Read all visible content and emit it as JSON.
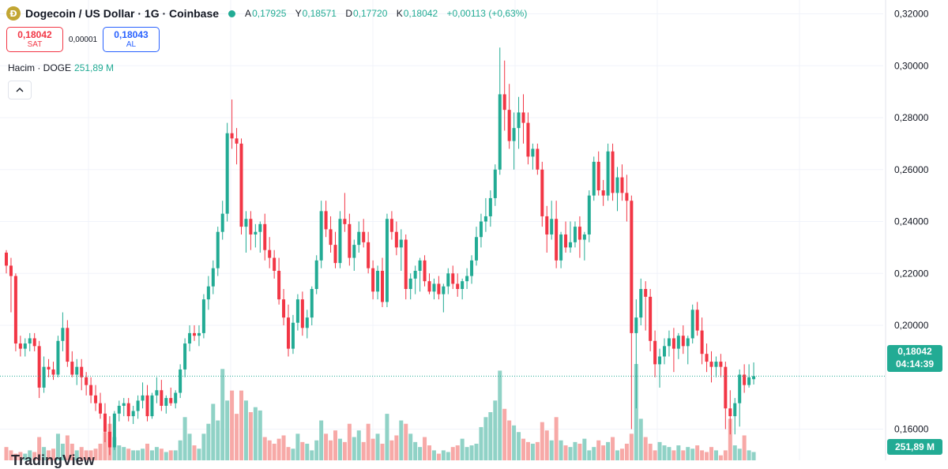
{
  "header": {
    "coin_icon_glyph": "Ð",
    "symbol_title": "Dogecoin / US Dollar · 1G · Coinbase",
    "ohlc": [
      {
        "key": "A",
        "value": "0,17925"
      },
      {
        "key": "Y",
        "value": "0,18571"
      },
      {
        "key": "D",
        "value": "0,17720"
      },
      {
        "key": "K",
        "value": "0,18042"
      }
    ],
    "change": "+0,00113 (+0,63%)"
  },
  "trade": {
    "sell_price": "0,18042",
    "sell_label": "SAT",
    "spread": "0,00001",
    "buy_price": "0,18043",
    "buy_label": "AL"
  },
  "volume_indicator": {
    "label": "Hacim · DOGE",
    "value": "251,89 M"
  },
  "collapse_icon": "chevron-up-icon",
  "price_scale": {
    "ticks": [
      "0,32000",
      "0,30000",
      "0,28000",
      "0,26000",
      "0,24000",
      "0,22000",
      "0,20000",
      "0,16000"
    ],
    "last_price": "0,18042",
    "countdown": "04:14:39",
    "last_volume": "251,89 M"
  },
  "watermark": "TradingView",
  "colors": {
    "up": "#22ab94",
    "down": "#f23645",
    "up_volume": "#90d2c6",
    "down_volume": "#f7a9a7",
    "grid": "#f0f3fa"
  },
  "chart_data": {
    "type": "candlestick",
    "y_range": [
      0.148,
      0.3235
    ],
    "y_ticks": [
      0.32,
      0.3,
      0.28,
      0.26,
      0.24,
      0.22,
      0.2,
      0.16
    ],
    "last_price": 0.18042,
    "candles": [
      [
        0.228,
        0.229,
        0.22,
        0.223
      ],
      [
        0.223,
        0.226,
        0.205,
        0.219
      ],
      [
        0.219,
        0.22,
        0.19,
        0.193
      ],
      [
        0.193,
        0.196,
        0.188,
        0.191
      ],
      [
        0.191,
        0.195,
        0.188,
        0.193
      ],
      [
        0.193,
        0.197,
        0.19,
        0.195
      ],
      [
        0.195,
        0.197,
        0.19,
        0.192
      ],
      [
        0.192,
        0.194,
        0.172,
        0.176
      ],
      [
        0.176,
        0.188,
        0.174,
        0.184
      ],
      [
        0.184,
        0.187,
        0.18,
        0.183
      ],
      [
        0.183,
        0.186,
        0.179,
        0.181
      ],
      [
        0.181,
        0.196,
        0.18,
        0.194
      ],
      [
        0.194,
        0.205,
        0.19,
        0.199
      ],
      [
        0.199,
        0.202,
        0.184,
        0.186
      ],
      [
        0.186,
        0.19,
        0.18,
        0.181
      ],
      [
        0.181,
        0.187,
        0.177,
        0.184
      ],
      [
        0.184,
        0.187,
        0.175,
        0.18
      ],
      [
        0.18,
        0.182,
        0.173,
        0.177
      ],
      [
        0.177,
        0.18,
        0.17,
        0.173
      ],
      [
        0.173,
        0.177,
        0.167,
        0.17
      ],
      [
        0.17,
        0.174,
        0.164,
        0.166
      ],
      [
        0.166,
        0.17,
        0.155,
        0.159
      ],
      [
        0.159,
        0.165,
        0.15,
        0.153
      ],
      [
        0.153,
        0.167,
        0.152,
        0.166
      ],
      [
        0.166,
        0.171,
        0.163,
        0.169
      ],
      [
        0.169,
        0.172,
        0.165,
        0.17
      ],
      [
        0.17,
        0.172,
        0.163,
        0.165
      ],
      [
        0.165,
        0.169,
        0.162,
        0.167
      ],
      [
        0.167,
        0.173,
        0.164,
        0.171
      ],
      [
        0.171,
        0.178,
        0.168,
        0.173
      ],
      [
        0.173,
        0.177,
        0.163,
        0.165
      ],
      [
        0.165,
        0.174,
        0.164,
        0.173
      ],
      [
        0.173,
        0.18,
        0.17,
        0.175
      ],
      [
        0.175,
        0.179,
        0.167,
        0.169
      ],
      [
        0.169,
        0.173,
        0.166,
        0.172
      ],
      [
        0.172,
        0.176,
        0.169,
        0.17
      ],
      [
        0.17,
        0.175,
        0.168,
        0.174
      ],
      [
        0.174,
        0.185,
        0.172,
        0.183
      ],
      [
        0.183,
        0.195,
        0.18,
        0.193
      ],
      [
        0.193,
        0.2,
        0.19,
        0.197
      ],
      [
        0.197,
        0.2,
        0.194,
        0.196
      ],
      [
        0.196,
        0.2,
        0.192,
        0.197
      ],
      [
        0.197,
        0.212,
        0.195,
        0.21
      ],
      [
        0.21,
        0.219,
        0.206,
        0.215
      ],
      [
        0.215,
        0.225,
        0.212,
        0.222
      ],
      [
        0.222,
        0.238,
        0.219,
        0.236
      ],
      [
        0.236,
        0.248,
        0.233,
        0.243
      ],
      [
        0.243,
        0.278,
        0.24,
        0.274
      ],
      [
        0.274,
        0.287,
        0.268,
        0.272
      ],
      [
        0.272,
        0.276,
        0.262,
        0.27
      ],
      [
        0.27,
        0.272,
        0.235,
        0.238
      ],
      [
        0.238,
        0.244,
        0.228,
        0.241
      ],
      [
        0.241,
        0.244,
        0.229,
        0.235
      ],
      [
        0.235,
        0.239,
        0.23,
        0.236
      ],
      [
        0.236,
        0.24,
        0.228,
        0.239
      ],
      [
        0.239,
        0.243,
        0.225,
        0.229
      ],
      [
        0.229,
        0.234,
        0.222,
        0.226
      ],
      [
        0.226,
        0.229,
        0.218,
        0.221
      ],
      [
        0.221,
        0.226,
        0.208,
        0.21
      ],
      [
        0.21,
        0.214,
        0.2,
        0.203
      ],
      [
        0.203,
        0.208,
        0.188,
        0.191
      ],
      [
        0.191,
        0.204,
        0.189,
        0.201
      ],
      [
        0.201,
        0.212,
        0.198,
        0.21
      ],
      [
        0.21,
        0.213,
        0.196,
        0.199
      ],
      [
        0.199,
        0.206,
        0.195,
        0.203
      ],
      [
        0.203,
        0.215,
        0.2,
        0.214
      ],
      [
        0.214,
        0.227,
        0.212,
        0.225
      ],
      [
        0.225,
        0.248,
        0.222,
        0.244
      ],
      [
        0.244,
        0.248,
        0.234,
        0.237
      ],
      [
        0.237,
        0.242,
        0.228,
        0.231
      ],
      [
        0.231,
        0.236,
        0.222,
        0.224
      ],
      [
        0.224,
        0.244,
        0.222,
        0.241
      ],
      [
        0.241,
        0.251,
        0.236,
        0.239
      ],
      [
        0.239,
        0.243,
        0.223,
        0.226
      ],
      [
        0.226,
        0.233,
        0.221,
        0.231
      ],
      [
        0.231,
        0.24,
        0.228,
        0.236
      ],
      [
        0.236,
        0.241,
        0.23,
        0.232
      ],
      [
        0.232,
        0.236,
        0.22,
        0.222
      ],
      [
        0.222,
        0.225,
        0.21,
        0.213
      ],
      [
        0.213,
        0.223,
        0.21,
        0.221
      ],
      [
        0.221,
        0.226,
        0.207,
        0.209
      ],
      [
        0.209,
        0.243,
        0.207,
        0.241
      ],
      [
        0.241,
        0.244,
        0.233,
        0.236
      ],
      [
        0.236,
        0.24,
        0.227,
        0.23
      ],
      [
        0.23,
        0.237,
        0.221,
        0.233
      ],
      [
        0.233,
        0.235,
        0.21,
        0.214
      ],
      [
        0.214,
        0.22,
        0.21,
        0.218
      ],
      [
        0.218,
        0.223,
        0.212,
        0.221
      ],
      [
        0.221,
        0.226,
        0.213,
        0.225
      ],
      [
        0.225,
        0.227,
        0.215,
        0.217
      ],
      [
        0.217,
        0.22,
        0.212,
        0.213
      ],
      [
        0.213,
        0.218,
        0.21,
        0.216
      ],
      [
        0.216,
        0.219,
        0.21,
        0.212
      ],
      [
        0.212,
        0.216,
        0.205,
        0.215
      ],
      [
        0.215,
        0.222,
        0.212,
        0.22
      ],
      [
        0.22,
        0.223,
        0.214,
        0.216
      ],
      [
        0.216,
        0.22,
        0.211,
        0.214
      ],
      [
        0.214,
        0.218,
        0.21,
        0.217
      ],
      [
        0.217,
        0.222,
        0.214,
        0.219
      ],
      [
        0.219,
        0.227,
        0.216,
        0.225
      ],
      [
        0.225,
        0.238,
        0.223,
        0.234
      ],
      [
        0.234,
        0.243,
        0.23,
        0.24
      ],
      [
        0.24,
        0.249,
        0.236,
        0.242
      ],
      [
        0.242,
        0.252,
        0.238,
        0.249
      ],
      [
        0.249,
        0.262,
        0.246,
        0.26
      ],
      [
        0.26,
        0.307,
        0.258,
        0.289
      ],
      [
        0.289,
        0.302,
        0.275,
        0.283
      ],
      [
        0.283,
        0.293,
        0.268,
        0.271
      ],
      [
        0.271,
        0.282,
        0.26,
        0.276
      ],
      [
        0.276,
        0.288,
        0.268,
        0.282
      ],
      [
        0.282,
        0.289,
        0.27,
        0.278
      ],
      [
        0.278,
        0.282,
        0.262,
        0.265
      ],
      [
        0.265,
        0.27,
        0.26,
        0.268
      ],
      [
        0.268,
        0.27,
        0.258,
        0.26
      ],
      [
        0.26,
        0.263,
        0.238,
        0.242
      ],
      [
        0.242,
        0.246,
        0.228,
        0.235
      ],
      [
        0.235,
        0.248,
        0.233,
        0.241
      ],
      [
        0.241,
        0.248,
        0.222,
        0.225
      ],
      [
        0.225,
        0.236,
        0.222,
        0.235
      ],
      [
        0.235,
        0.24,
        0.228,
        0.23
      ],
      [
        0.23,
        0.24,
        0.228,
        0.232
      ],
      [
        0.232,
        0.24,
        0.23,
        0.238
      ],
      [
        0.238,
        0.242,
        0.226,
        0.233
      ],
      [
        0.233,
        0.236,
        0.225,
        0.235
      ],
      [
        0.235,
        0.252,
        0.232,
        0.25
      ],
      [
        0.25,
        0.265,
        0.248,
        0.263
      ],
      [
        0.263,
        0.267,
        0.25,
        0.252
      ],
      [
        0.252,
        0.256,
        0.246,
        0.25
      ],
      [
        0.25,
        0.27,
        0.248,
        0.267
      ],
      [
        0.267,
        0.27,
        0.248,
        0.251
      ],
      [
        0.251,
        0.261,
        0.244,
        0.257
      ],
      [
        0.257,
        0.262,
        0.248,
        0.251
      ],
      [
        0.251,
        0.258,
        0.24,
        0.248
      ],
      [
        0.248,
        0.25,
        0.16,
        0.197
      ],
      [
        0.197,
        0.21,
        0.168,
        0.203
      ],
      [
        0.203,
        0.218,
        0.2,
        0.214
      ],
      [
        0.214,
        0.217,
        0.198,
        0.211
      ],
      [
        0.211,
        0.214,
        0.19,
        0.194
      ],
      [
        0.194,
        0.198,
        0.18,
        0.185
      ],
      [
        0.185,
        0.191,
        0.176,
        0.188
      ],
      [
        0.188,
        0.195,
        0.185,
        0.192
      ],
      [
        0.192,
        0.198,
        0.188,
        0.195
      ],
      [
        0.195,
        0.199,
        0.182,
        0.191
      ],
      [
        0.191,
        0.197,
        0.187,
        0.196
      ],
      [
        0.196,
        0.2,
        0.189,
        0.192
      ],
      [
        0.192,
        0.196,
        0.185,
        0.195
      ],
      [
        0.195,
        0.208,
        0.193,
        0.206
      ],
      [
        0.206,
        0.209,
        0.196,
        0.198
      ],
      [
        0.198,
        0.203,
        0.185,
        0.189
      ],
      [
        0.189,
        0.193,
        0.182,
        0.186
      ],
      [
        0.186,
        0.19,
        0.178,
        0.184
      ],
      [
        0.184,
        0.188,
        0.18,
        0.186
      ],
      [
        0.186,
        0.189,
        0.18,
        0.184
      ],
      [
        0.184,
        0.186,
        0.16,
        0.168
      ],
      [
        0.168,
        0.175,
        0.158,
        0.165
      ],
      [
        0.165,
        0.172,
        0.158,
        0.17
      ],
      [
        0.17,
        0.183,
        0.161,
        0.181
      ],
      [
        0.181,
        0.185,
        0.174,
        0.177
      ],
      [
        0.177,
        0.185,
        0.176,
        0.18
      ],
      [
        0.17925,
        0.18571,
        0.1772,
        0.18042
      ]
    ],
    "volumes": [
      8,
      6,
      4,
      5,
      4,
      6,
      5,
      14,
      8,
      6,
      7,
      16,
      10,
      15,
      10,
      6,
      8,
      6,
      6,
      7,
      10,
      17,
      22,
      14,
      9,
      8,
      7,
      6,
      6,
      7,
      10,
      6,
      8,
      7,
      5,
      6,
      6,
      12,
      26,
      16,
      9,
      7,
      16,
      22,
      34,
      24,
      55,
      36,
      42,
      28,
      42,
      36,
      29,
      32,
      30,
      14,
      12,
      10,
      13,
      15,
      8,
      7,
      16,
      11,
      10,
      6,
      12,
      24,
      16,
      12,
      18,
      13,
      11,
      22,
      14,
      18,
      11,
      22,
      13,
      16,
      10,
      28,
      12,
      15,
      24,
      22,
      16,
      11,
      8,
      14,
      9,
      6,
      4,
      6,
      5,
      8,
      9,
      13,
      8,
      9,
      10,
      20,
      26,
      29,
      36,
      54,
      31,
      24,
      21,
      17,
      13,
      11,
      10,
      11,
      23,
      18,
      12,
      26,
      12,
      9,
      8,
      11,
      10,
      13,
      6,
      8,
      12,
      9,
      11,
      14,
      6,
      7,
      10,
      16,
      58,
      25,
      14,
      10,
      6,
      11,
      9,
      8,
      6,
      9,
      6,
      8,
      7,
      9,
      6,
      5,
      8,
      6,
      3,
      6,
      25,
      9,
      7,
      15,
      6,
      5,
      10
    ]
  }
}
